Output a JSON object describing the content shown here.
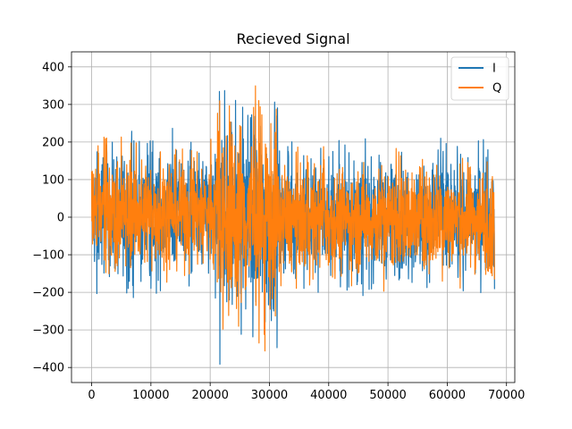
{
  "chart_data": {
    "type": "line",
    "title": "Recieved Signal",
    "xlabel": "",
    "ylabel": "",
    "xlim": [
      -3400,
      71400
    ],
    "ylim": [
      -440,
      440
    ],
    "xticks": [
      0,
      10000,
      20000,
      30000,
      40000,
      50000,
      60000,
      70000
    ],
    "yticks": [
      -400,
      -300,
      -200,
      -100,
      0,
      100,
      200,
      300,
      400
    ],
    "xtick_labels": [
      "0",
      "10000",
      "20000",
      "30000",
      "40000",
      "50000",
      "60000",
      "70000"
    ],
    "ytick_labels": [
      "−400",
      "−300",
      "−200",
      "−100",
      "0",
      "100",
      "200",
      "300",
      "400"
    ],
    "grid": true,
    "legend_position": "top-right",
    "n_samples": 68000,
    "series": [
      {
        "name": "I",
        "color": "#1f77b4",
        "segments": [
          {
            "x_start": 0,
            "x_end": 21000,
            "min": -220,
            "max": 240
          },
          {
            "x_start": 21000,
            "x_end": 31500,
            "min": -405,
            "max": 395
          },
          {
            "x_start": 31500,
            "x_end": 68000,
            "min": -215,
            "max": 210
          }
        ]
      },
      {
        "name": "Q",
        "color": "#ff7f0e",
        "segments": [
          {
            "x_start": 0,
            "x_end": 21000,
            "min": -190,
            "max": 215
          },
          {
            "x_start": 21000,
            "x_end": 31500,
            "min": -360,
            "max": 365
          },
          {
            "x_start": 31500,
            "x_end": 68000,
            "min": -200,
            "max": 190
          }
        ]
      }
    ]
  }
}
